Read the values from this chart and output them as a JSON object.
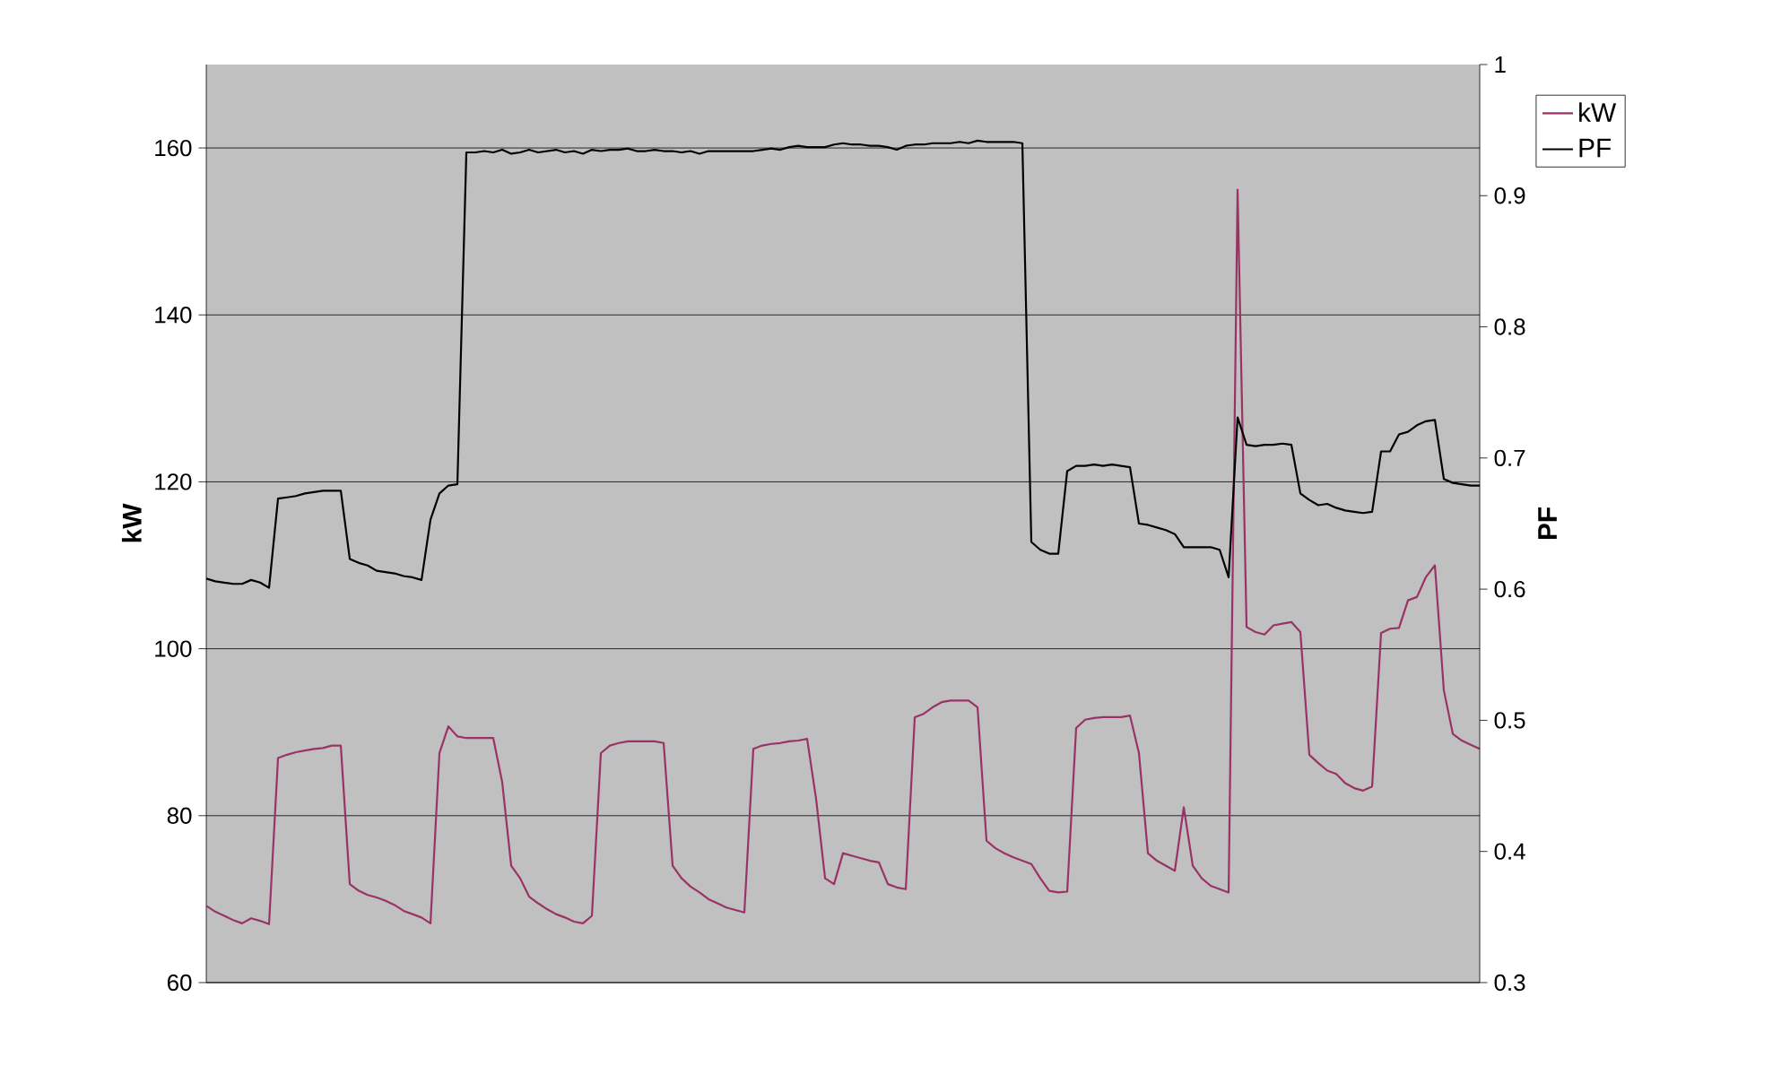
{
  "chart_data": {
    "type": "line",
    "ylabel": "kW",
    "y2label": "PF",
    "categories": [
      null,
      null,
      null,
      null,
      null,
      null,
      null,
      null,
      null,
      null,
      null,
      null,
      null,
      null,
      null,
      null,
      null,
      null,
      null,
      null,
      null,
      null,
      null,
      null,
      null,
      null,
      null,
      null,
      null,
      null,
      null,
      null,
      null,
      null,
      null,
      null,
      null,
      null,
      null,
      null,
      null,
      null,
      null,
      null,
      null,
      null,
      null,
      null,
      null,
      null,
      null,
      null,
      null,
      null,
      null,
      null,
      null,
      null,
      null,
      null,
      null,
      null,
      null,
      null,
      null,
      null,
      null,
      null,
      null,
      null,
      null,
      null,
      null,
      null,
      null,
      null,
      null,
      null,
      null,
      null,
      null,
      null,
      null,
      null,
      null,
      null,
      null,
      null,
      null,
      null,
      null,
      null,
      null,
      null,
      null,
      null,
      null,
      null,
      null,
      null,
      null,
      null,
      null,
      null,
      null,
      null,
      null,
      null,
      null,
      null,
      null,
      null,
      null,
      null,
      null,
      null,
      null,
      null,
      null,
      null,
      null,
      null,
      null,
      null,
      null,
      null,
      null,
      null,
      null,
      null,
      null,
      null,
      null,
      null,
      null,
      null,
      null,
      null,
      null,
      null,
      null,
      null,
      null
    ],
    "series": [
      {
        "name": "kW",
        "color": "#993366",
        "values": [
          69.2,
          68.5,
          68.0,
          67.5,
          67.1,
          67.7,
          67.4,
          67.0,
          86.9,
          87.3,
          87.6,
          87.8,
          88.0,
          88.1,
          88.4,
          88.4,
          71.8,
          71.0,
          70.5,
          70.2,
          69.8,
          69.3,
          68.6,
          68.2,
          67.8,
          67.1,
          87.5,
          90.7,
          89.5,
          89.3,
          89.3,
          89.3,
          89.3,
          84.0,
          74.0,
          72.5,
          70.3,
          69.5,
          68.8,
          68.2,
          67.8,
          67.3,
          67.1,
          68.0,
          87.5,
          88.4,
          88.7,
          88.9,
          88.9,
          88.9,
          88.9,
          88.7,
          74.0,
          72.5,
          71.5,
          70.8,
          70.0,
          69.5,
          69.0,
          68.7,
          68.4,
          88.0,
          88.4,
          88.6,
          88.7,
          88.9,
          89.0,
          89.2,
          82.0,
          72.5,
          71.8,
          75.5,
          75.2,
          74.9,
          74.6,
          74.4,
          71.8,
          71.4,
          71.2,
          91.8,
          92.2,
          93.0,
          93.6,
          93.8,
          93.8,
          93.8,
          93.0,
          77.0,
          76.1,
          75.5,
          75.0,
          74.6,
          74.2,
          72.5,
          71.0,
          70.8,
          70.9,
          90.5,
          91.5,
          91.7,
          91.8,
          91.8,
          91.8,
          92.0,
          87.5,
          75.5,
          74.6,
          74.0,
          73.4,
          81.0,
          74.0,
          72.5,
          71.6,
          71.2,
          70.8,
          155.0,
          102.6,
          102.0,
          101.7,
          102.8,
          103.0,
          103.2,
          102.0,
          87.3,
          86.3,
          85.4,
          85.0,
          83.9,
          83.3,
          83.0,
          83.5,
          101.9,
          102.4,
          102.5,
          105.8,
          106.2,
          108.6,
          110.0,
          95.0,
          89.8,
          89.0,
          88.5,
          88.0
        ]
      },
      {
        "name": "PF",
        "color": "#000000",
        "axis": "y2",
        "values": [
          0.608,
          0.606,
          0.605,
          0.604,
          0.604,
          0.607,
          0.605,
          0.601,
          0.669,
          0.67,
          0.671,
          0.673,
          0.674,
          0.675,
          0.675,
          0.675,
          0.623,
          0.62,
          0.618,
          0.614,
          0.613,
          0.612,
          0.61,
          0.609,
          0.607,
          0.653,
          0.673,
          0.679,
          0.68,
          0.933,
          0.933,
          0.934,
          0.933,
          0.935,
          0.932,
          0.933,
          0.935,
          0.933,
          0.934,
          0.935,
          0.933,
          0.934,
          0.932,
          0.935,
          0.934,
          0.935,
          0.935,
          0.936,
          0.934,
          0.934,
          0.935,
          0.934,
          0.934,
          0.933,
          0.934,
          0.932,
          0.934,
          0.934,
          0.934,
          0.934,
          0.934,
          0.934,
          0.935,
          0.936,
          0.935,
          0.937,
          0.938,
          0.937,
          0.937,
          0.937,
          0.939,
          0.94,
          0.939,
          0.939,
          0.938,
          0.938,
          0.937,
          0.935,
          0.938,
          0.939,
          0.939,
          0.94,
          0.94,
          0.94,
          0.941,
          0.94,
          0.942,
          0.941,
          0.941,
          0.941,
          0.941,
          0.94,
          0.636,
          0.63,
          0.627,
          0.627,
          0.69,
          0.694,
          0.694,
          0.695,
          0.694,
          0.695,
          0.694,
          0.693,
          0.65,
          0.649,
          0.647,
          0.645,
          0.642,
          0.632,
          0.632,
          0.632,
          0.632,
          0.63,
          0.609,
          0.731,
          0.71,
          0.709,
          0.71,
          0.71,
          0.711,
          0.71,
          0.673,
          0.668,
          0.664,
          0.665,
          0.662,
          0.66,
          0.659,
          0.658,
          0.659,
          0.705,
          0.705,
          0.718,
          0.72,
          0.725,
          0.728,
          0.729,
          0.684,
          0.681,
          0.68,
          0.679,
          0.679
        ]
      }
    ],
    "ylim": [
      60,
      170
    ],
    "yticks": [
      60,
      80,
      100,
      120,
      140,
      160
    ],
    "y2lim": [
      0.3,
      1
    ],
    "y2ticks": [
      0.3,
      0.4,
      0.5,
      0.6,
      0.7,
      0.8,
      0.9,
      1
    ],
    "grid": "y",
    "legend": "right"
  }
}
